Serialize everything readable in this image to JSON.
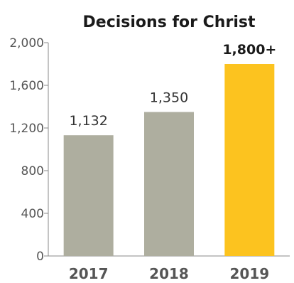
{
  "chart_data": {
    "type": "bar",
    "title": "Decisions for Christ",
    "categories": [
      "2017",
      "2018",
      "2019"
    ],
    "values": [
      1132,
      1350,
      1800
    ],
    "data_labels": [
      "1,132",
      "1,350",
      "1,800+"
    ],
    "highlight_index": 2,
    "ylim": [
      0,
      2000
    ],
    "yticks": [
      0,
      400,
      800,
      1200,
      1600,
      2000
    ],
    "ytick_labels": [
      "0",
      "400",
      "800",
      "1,200",
      "1,600",
      "2,000"
    ],
    "xlabel": "",
    "ylabel": "",
    "grid": false,
    "colors": {
      "bar": "#aeae9f",
      "highlight": "#fcc31f"
    }
  }
}
